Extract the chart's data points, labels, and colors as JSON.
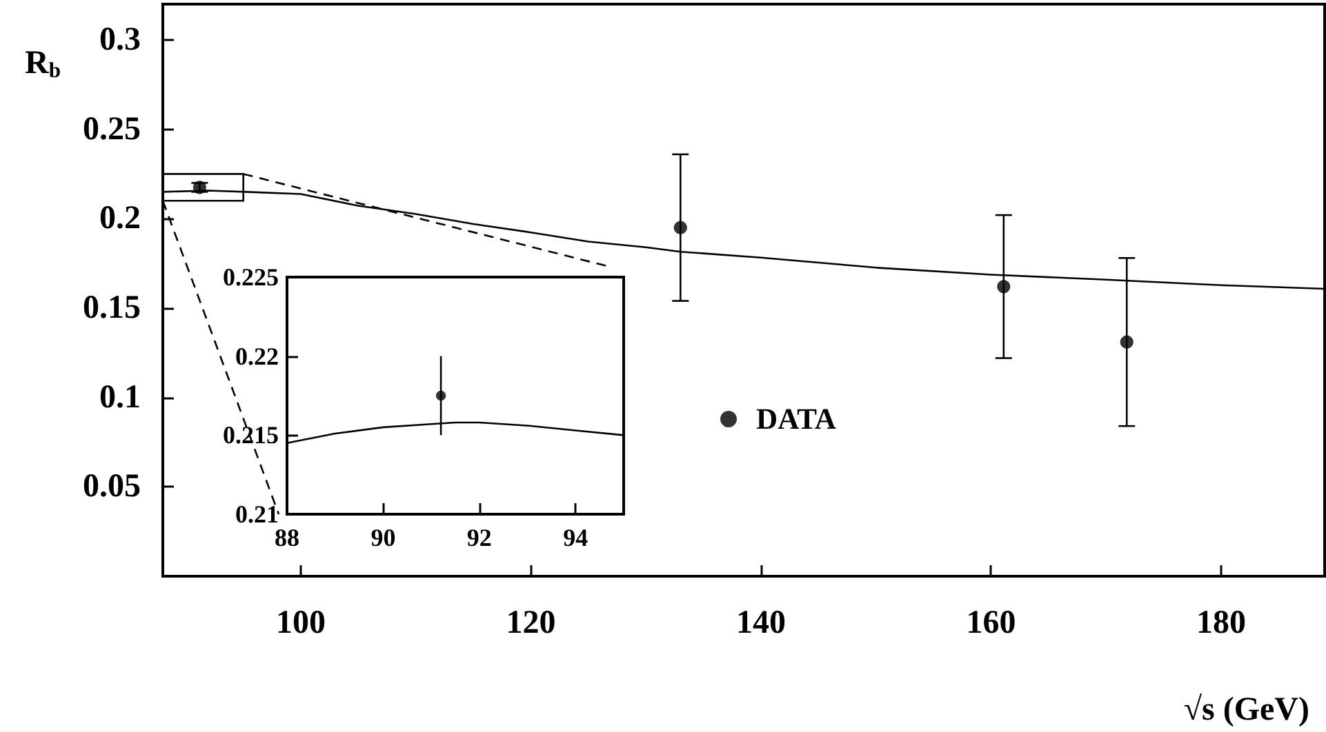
{
  "chart_data": [
    {
      "type": "scatter",
      "xlabel": "√s (GeV)",
      "ylabel": "R$_{b}$",
      "xlim": [
        88,
        189
      ],
      "ylim": [
        0,
        0.32
      ],
      "xticks": [
        100,
        120,
        140,
        160,
        180
      ],
      "yticks": [
        0.05,
        0.1,
        0.15,
        0.2,
        0.25,
        0.3
      ],
      "grid": false,
      "legend": "right",
      "series": [
        {
          "name": "DATA",
          "color": "#000000",
          "marker": "circle",
          "x": [
            91.2,
            133,
            161.1,
            171.8
          ],
          "values": [
            0.2175,
            0.195,
            0.162,
            0.131
          ],
          "errors": [
            [
              0.215,
              0.22
            ],
            [
              0.154,
              0.236
            ],
            [
              0.122,
              0.202
            ],
            [
              0.084,
              0.178
            ]
          ]
        },
        {
          "type": "line",
          "color": "#000000",
          "marker": "none",
          "line_style": "solid",
          "x": [
            88,
            92,
            96,
            100,
            105,
            110,
            115,
            120,
            125,
            130,
            133,
            140,
            150,
            160,
            170,
            180,
            189
          ],
          "values": [
            0.215,
            0.2157,
            0.2148,
            0.2138,
            0.2072,
            0.2026,
            0.197,
            0.1923,
            0.1872,
            0.184,
            0.1815,
            0.1782,
            0.1726,
            0.1687,
            0.1659,
            0.1628,
            0.1608
          ]
        }
      ]
    },
    {
      "type": "scatter",
      "xlim": [
        88,
        95
      ],
      "ylim": [
        0.21,
        0.225
      ],
      "xticks": [
        88,
        90,
        92,
        94
      ],
      "yticks": [
        0.21,
        0.215,
        0.22,
        0.225
      ],
      "grid": false,
      "legend": false,
      "series": [
        {
          "color": "#000000",
          "marker": "circle",
          "x": [
            91.2
          ],
          "values": [
            0.2175
          ],
          "errors": [
            [
              0.215,
              0.22
            ]
          ]
        },
        {
          "type": "line",
          "color": "#000000",
          "marker": "none",
          "line_style": "solid",
          "x": [
            88,
            89,
            90,
            91,
            91.5,
            92,
            93,
            94,
            95
          ],
          "values": [
            0.2145,
            0.2151,
            0.2155,
            0.2157,
            0.2158,
            0.2158,
            0.2156,
            0.2153,
            0.215
          ]
        }
      ]
    }
  ]
}
